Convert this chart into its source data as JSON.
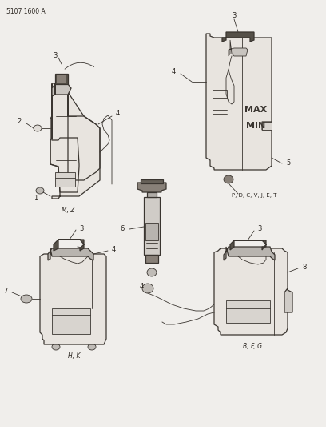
{
  "background_color": "#f0eeeb",
  "line_color": "#3a3530",
  "text_color": "#2a2520",
  "fig_width": 4.08,
  "fig_height": 5.33,
  "dpi": 100,
  "top_label": "5107 1600 A",
  "mz_label": "M, Z",
  "hk_label": "H, K",
  "pdcvjet_label": "P, D, C, V, J, E, T",
  "bfg_label": "B, F, G",
  "max_text": "MAX",
  "min_text": "MIN"
}
